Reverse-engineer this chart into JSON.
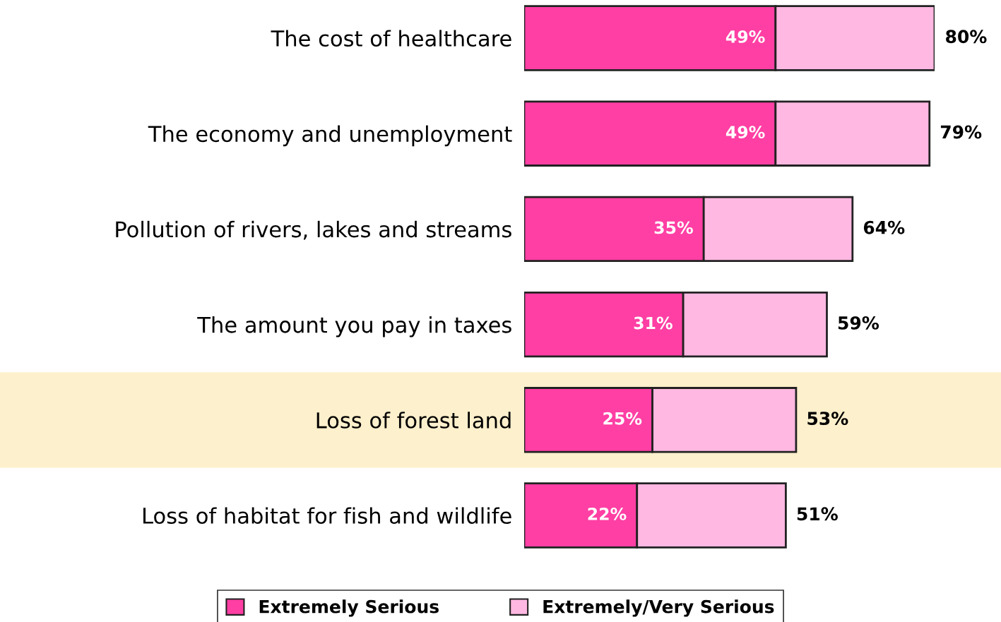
{
  "chart_data": {
    "type": "bar",
    "orientation": "horizontal",
    "stacked": true,
    "categories": [
      "The cost of healthcare",
      "The economy and unemployment",
      "Pollution of rivers, lakes and streams",
      "The amount you pay in taxes",
      "Loss of forest land",
      "Loss of habitat for fish and wildlife"
    ],
    "series": [
      {
        "name": "Extremely Serious",
        "color": "#ff3fa4",
        "values": [
          49,
          49,
          35,
          31,
          25,
          22
        ],
        "value_labels": [
          "49%",
          "49%",
          "35%",
          "31%",
          "25%",
          "22%"
        ]
      },
      {
        "name": "Extremely/Very Serious",
        "color": "#ffb8e2",
        "values": [
          31,
          30,
          29,
          28,
          28,
          29
        ]
      }
    ],
    "totals": [
      "80%",
      "79%",
      "64%",
      "59%",
      "53%",
      "51%"
    ],
    "xlim": [
      0,
      80
    ],
    "tick_labels": "y",
    "grid": false,
    "legend": "bottom",
    "bands": [
      {
        "axis": "y",
        "from": "Loss of forest land",
        "to": "Loss of forest land",
        "color": "#fdf0cc"
      }
    ]
  }
}
